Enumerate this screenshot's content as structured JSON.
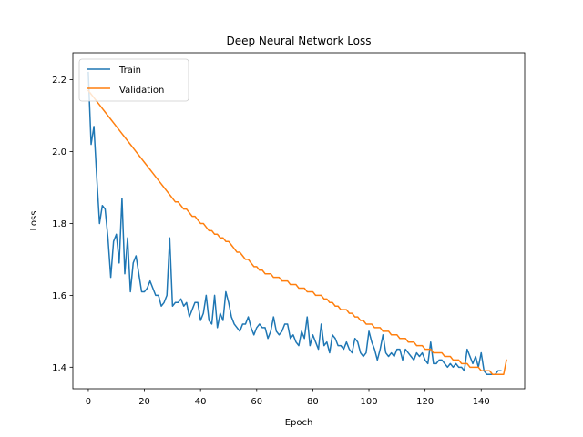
{
  "chart_data": {
    "type": "line",
    "title": "Deep Neural Network Loss",
    "xlabel": "Epoch",
    "ylabel": "Loss",
    "xlim": [
      -5.5,
      155.5
    ],
    "ylim": [
      1.34,
      2.275
    ],
    "xticks": [
      0,
      20,
      40,
      60,
      80,
      100,
      120,
      140
    ],
    "yticks": [
      1.4,
      1.6,
      1.8,
      2.0,
      2.2
    ],
    "ytick_labels": [
      "1.4",
      "1.6",
      "1.8",
      "2.0",
      "2.2"
    ],
    "grid": false,
    "legend_position": "top-left",
    "series": [
      {
        "name": "Train",
        "color": "#1f77b4",
        "values": [
          2.22,
          2.02,
          2.07,
          1.93,
          1.8,
          1.85,
          1.84,
          1.76,
          1.65,
          1.75,
          1.77,
          1.69,
          1.87,
          1.66,
          1.76,
          1.61,
          1.69,
          1.71,
          1.66,
          1.61,
          1.61,
          1.62,
          1.64,
          1.62,
          1.6,
          1.6,
          1.57,
          1.58,
          1.6,
          1.76,
          1.57,
          1.58,
          1.58,
          1.59,
          1.57,
          1.58,
          1.54,
          1.56,
          1.58,
          1.58,
          1.53,
          1.55,
          1.6,
          1.53,
          1.52,
          1.6,
          1.51,
          1.55,
          1.53,
          1.61,
          1.58,
          1.54,
          1.52,
          1.51,
          1.5,
          1.52,
          1.52,
          1.54,
          1.51,
          1.49,
          1.51,
          1.52,
          1.51,
          1.51,
          1.48,
          1.5,
          1.54,
          1.5,
          1.49,
          1.5,
          1.52,
          1.52,
          1.48,
          1.49,
          1.47,
          1.46,
          1.5,
          1.48,
          1.54,
          1.46,
          1.49,
          1.47,
          1.45,
          1.52,
          1.46,
          1.47,
          1.44,
          1.49,
          1.48,
          1.46,
          1.46,
          1.45,
          1.47,
          1.45,
          1.44,
          1.48,
          1.47,
          1.44,
          1.43,
          1.44,
          1.5,
          1.47,
          1.45,
          1.42,
          1.45,
          1.49,
          1.44,
          1.43,
          1.44,
          1.43,
          1.45,
          1.45,
          1.42,
          1.45,
          1.44,
          1.43,
          1.42,
          1.44,
          1.43,
          1.44,
          1.42,
          1.41,
          1.47,
          1.41,
          1.41,
          1.42,
          1.42,
          1.41,
          1.4,
          1.41,
          1.4,
          1.41,
          1.4,
          1.4,
          1.39,
          1.45,
          1.43,
          1.41,
          1.43,
          1.4,
          1.44,
          1.39,
          1.38,
          1.38,
          1.38,
          1.38,
          1.39,
          1.39
        ]
      },
      {
        "name": "Validation",
        "color": "#ff7f0e",
        "values": [
          2.17,
          2.16,
          2.15,
          2.14,
          2.13,
          2.12,
          2.11,
          2.1,
          2.09,
          2.08,
          2.07,
          2.06,
          2.05,
          2.04,
          2.03,
          2.02,
          2.01,
          2.0,
          1.99,
          1.98,
          1.97,
          1.96,
          1.95,
          1.94,
          1.93,
          1.92,
          1.91,
          1.9,
          1.89,
          1.88,
          1.87,
          1.86,
          1.86,
          1.85,
          1.84,
          1.84,
          1.83,
          1.82,
          1.82,
          1.81,
          1.8,
          1.8,
          1.79,
          1.78,
          1.78,
          1.77,
          1.77,
          1.76,
          1.76,
          1.75,
          1.75,
          1.74,
          1.73,
          1.72,
          1.72,
          1.71,
          1.7,
          1.7,
          1.69,
          1.68,
          1.68,
          1.67,
          1.67,
          1.66,
          1.66,
          1.66,
          1.65,
          1.65,
          1.65,
          1.64,
          1.64,
          1.64,
          1.63,
          1.63,
          1.63,
          1.62,
          1.62,
          1.62,
          1.61,
          1.61,
          1.61,
          1.6,
          1.6,
          1.6,
          1.59,
          1.59,
          1.58,
          1.58,
          1.57,
          1.57,
          1.56,
          1.56,
          1.56,
          1.55,
          1.55,
          1.54,
          1.54,
          1.53,
          1.53,
          1.52,
          1.52,
          1.52,
          1.51,
          1.51,
          1.51,
          1.5,
          1.5,
          1.5,
          1.49,
          1.49,
          1.49,
          1.48,
          1.48,
          1.48,
          1.47,
          1.47,
          1.47,
          1.46,
          1.46,
          1.46,
          1.45,
          1.45,
          1.45,
          1.44,
          1.44,
          1.44,
          1.44,
          1.43,
          1.43,
          1.43,
          1.42,
          1.42,
          1.42,
          1.41,
          1.41,
          1.41,
          1.4,
          1.4,
          1.4,
          1.4,
          1.39,
          1.39,
          1.39,
          1.39,
          1.38,
          1.38,
          1.38,
          1.38,
          1.38,
          1.42
        ]
      }
    ]
  }
}
